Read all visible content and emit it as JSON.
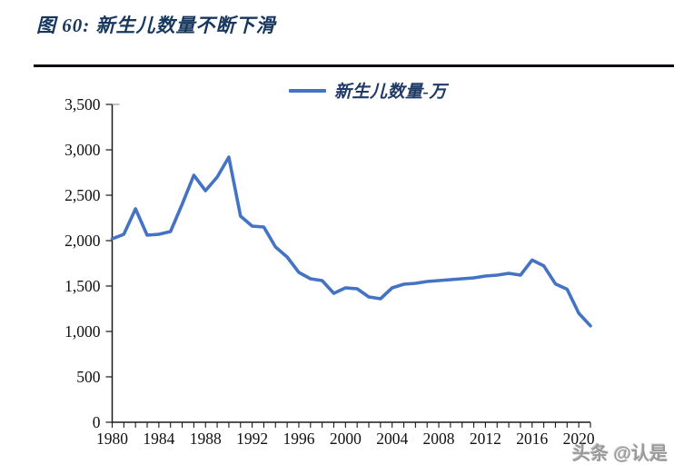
{
  "page": {
    "title": "图 60: 新生儿数量不断下滑",
    "watermark": "头条 @认是"
  },
  "chart_data": {
    "type": "line",
    "title": "图 60: 新生儿数量不断下滑",
    "legend_position": "top-center",
    "grid": false,
    "axis_color": "#1a1a1a",
    "label_color": "#111111",
    "ylim": [
      0,
      3500
    ],
    "ytick_interval": 500,
    "ytick_labels": [
      "0",
      "500",
      "1,000",
      "1,500",
      "2,000",
      "2,500",
      "3,000",
      "3,500"
    ],
    "xtick_labels": [
      1980,
      1984,
      1988,
      1992,
      1996,
      2000,
      2004,
      2008,
      2012,
      2016,
      2020
    ],
    "x": [
      1980,
      1981,
      1982,
      1983,
      1984,
      1985,
      1986,
      1987,
      1988,
      1989,
      1990,
      1991,
      1992,
      1993,
      1994,
      1995,
      1996,
      1997,
      1998,
      1999,
      2000,
      2001,
      2002,
      2003,
      2004,
      2005,
      2006,
      2007,
      2008,
      2009,
      2010,
      2011,
      2012,
      2013,
      2014,
      2015,
      2016,
      2017,
      2018,
      2019,
      2020,
      2021
    ],
    "series": [
      {
        "name": "新生儿数量-万",
        "color": "#4472c4",
        "values": [
          2020,
          2070,
          2350,
          2060,
          2070,
          2100,
          2400,
          2720,
          2550,
          2700,
          2920,
          2270,
          2160,
          2150,
          1930,
          1820,
          1650,
          1580,
          1560,
          1420,
          1480,
          1470,
          1380,
          1360,
          1480,
          1520,
          1530,
          1550,
          1560,
          1570,
          1580,
          1590,
          1610,
          1620,
          1640,
          1620,
          1786,
          1723,
          1523,
          1465,
          1200,
          1062
        ]
      }
    ]
  }
}
